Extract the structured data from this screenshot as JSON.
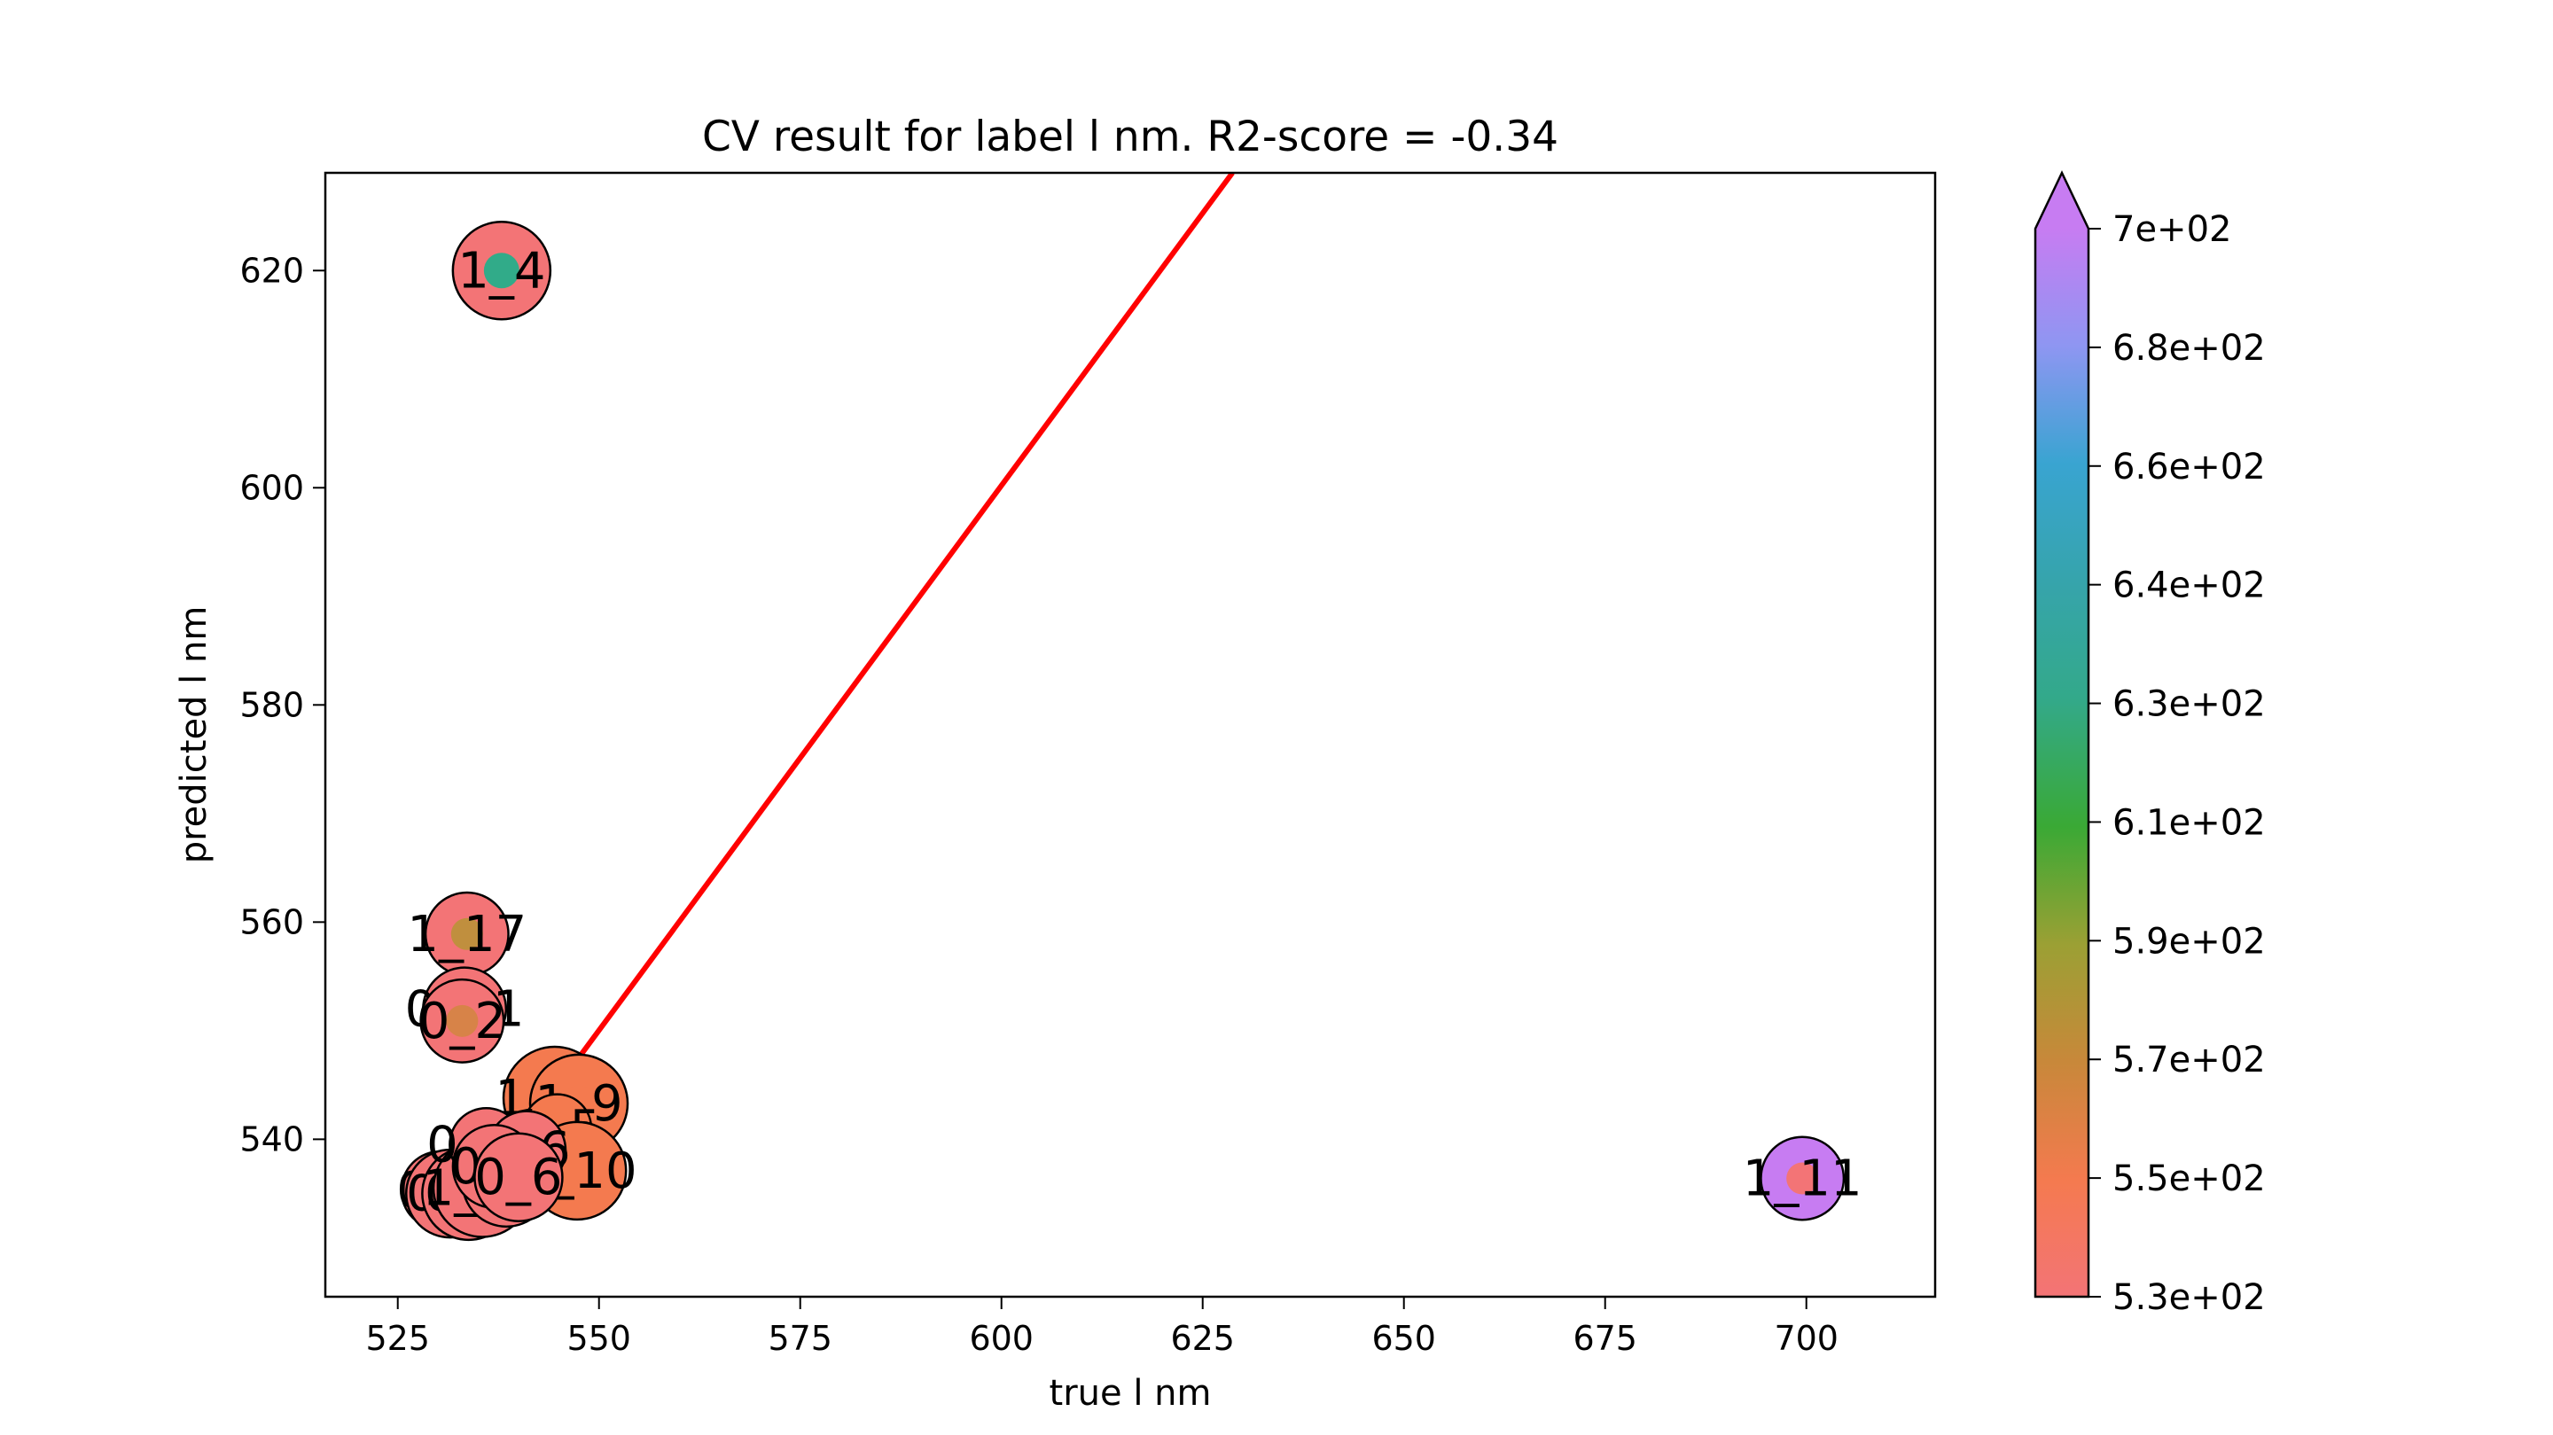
{
  "chart_data": {
    "type": "scatter",
    "title": "CV result for label l nm. R2-score = -0.34",
    "xlabel": "true l nm",
    "ylabel": "predicted l nm",
    "xlim": [
      516,
      716
    ],
    "ylim": [
      525.5,
      629
    ],
    "xticks": [
      525,
      550,
      575,
      600,
      625,
      650,
      675,
      700
    ],
    "yticks": [
      540,
      560,
      580,
      600,
      620
    ],
    "xtick_labels": [
      "525",
      "550",
      "575",
      "600",
      "625",
      "650",
      "675",
      "700"
    ],
    "ytick_labels": [
      "540",
      "560",
      "580",
      "600",
      "620"
    ],
    "fit_line": {
      "x": [
        540.3,
        628.7
      ],
      "y": [
        540.3,
        629
      ],
      "color": "#ff0000"
    },
    "colorbar": {
      "cmap": "husl",
      "min": 530,
      "max": 700,
      "extend": "max",
      "ticks": [
        530,
        550,
        570,
        590,
        610,
        630,
        640,
        660,
        680,
        700
      ],
      "tick_labels": [
        "5.3e+02",
        "5.5e+02",
        "5.7e+02",
        "5.9e+02",
        "6.1e+02",
        "6.3e+02",
        "6.4e+02",
        "6.6e+02",
        "6.8e+02",
        "7e+02"
      ]
    },
    "points": [
      {
        "label": "1_4",
        "x": 537.9,
        "y": 620.0,
        "true": 537.9,
        "pred": 620.0,
        "size": 1.0,
        "outer": "#f37476",
        "inner": "#31ab89"
      },
      {
        "label": "1_17",
        "x": 533.6,
        "y": 558.9,
        "true": 533.6,
        "pred": 558.9,
        "size": 0.85,
        "outer": "#f37476",
        "inner": "#c08f3e"
      },
      {
        "label": "0_11",
        "x": 533.3,
        "y": 552.0,
        "true": 533.3,
        "pred": 552.0,
        "size": 0.85,
        "outer": "#f37476",
        "inner": "#cc8a40"
      },
      {
        "label": "0_2",
        "x": 533.0,
        "y": 550.9,
        "true": 533.0,
        "pred": 550.9,
        "size": 0.85,
        "outer": "#f37476",
        "inner": "#d78348"
      },
      {
        "label": "1_16",
        "x": 544.5,
        "y": 543.8,
        "true": 544.5,
        "pred": 543.8,
        "size": 1.05,
        "outer": "#f47a4f",
        "inner": "#f47a4f"
      },
      {
        "label": "1_9",
        "x": 547.5,
        "y": 543.3,
        "true": 547.5,
        "pred": 543.3,
        "size": 1.0,
        "outer": "#f47a4f",
        "inner": "#f47a4f"
      },
      {
        "label": "1_5",
        "x": 544.8,
        "y": 541.0,
        "true": 544.8,
        "pred": 541.0,
        "size": 0.7,
        "outer": "#f47a4f",
        "inner": "#f47a4f"
      },
      {
        "label": "1_10",
        "x": 547.3,
        "y": 537.1,
        "true": 547.3,
        "pred": 537.1,
        "size": 1.0,
        "outer": "#f47a4f",
        "inner": "#f47a4f"
      },
      {
        "label": "1_11",
        "x": 699.5,
        "y": 536.4,
        "true": 699.5,
        "pred": 536.4,
        "size": 0.85,
        "outer": "#c77cf2",
        "inner": "#f37476"
      },
      {
        "label": "0_1",
        "x": 530.3,
        "y": 535.3,
        "true": 530.3,
        "pred": 535.3,
        "size": 0.8,
        "outer": "#f37476",
        "inner": "#f37476"
      },
      {
        "label": "0_5",
        "x": 531.5,
        "y": 535.0,
        "true": 531.5,
        "pred": 535.0,
        "size": 0.9,
        "outer": "#f37476",
        "inner": "#f37476"
      },
      {
        "label": "0_8",
        "x": 533.8,
        "y": 535.0,
        "true": 533.8,
        "pred": 535.0,
        "size": 0.95,
        "outer": "#f37476",
        "inner": "#f37476"
      },
      {
        "label": "1_12",
        "x": 535.5,
        "y": 535.5,
        "true": 535.5,
        "pred": 535.5,
        "size": 1.0,
        "outer": "#f37476",
        "inner": "#f37476"
      },
      {
        "label": "1_2",
        "x": 538.5,
        "y": 536.0,
        "true": 538.5,
        "pred": 536.0,
        "size": 0.9,
        "outer": "#f37476",
        "inner": "#f37476"
      },
      {
        "label": "1_3",
        "x": 539.5,
        "y": 538.5,
        "true": 539.5,
        "pred": 538.5,
        "size": 0.8,
        "outer": "#f37476",
        "inner": "#f37476"
      },
      {
        "label": "0_10",
        "x": 536.0,
        "y": 539.5,
        "true": 536.0,
        "pred": 539.5,
        "size": 0.75,
        "outer": "#f37476",
        "inner": "#f37476"
      },
      {
        "label": "1_6",
        "x": 541.0,
        "y": 539.0,
        "true": 541.0,
        "pred": 539.0,
        "size": 0.8,
        "outer": "#f37476",
        "inner": "#f37476"
      },
      {
        "label": "0_4",
        "x": 537.0,
        "y": 537.5,
        "true": 537.0,
        "pred": 537.5,
        "size": 0.85,
        "outer": "#f37476",
        "inner": "#f37476"
      },
      {
        "label": "0_6",
        "x": 540.0,
        "y": 536.5,
        "true": 540.0,
        "pred": 536.5,
        "size": 0.9,
        "outer": "#f37476",
        "inner": "#f37476"
      }
    ]
  }
}
